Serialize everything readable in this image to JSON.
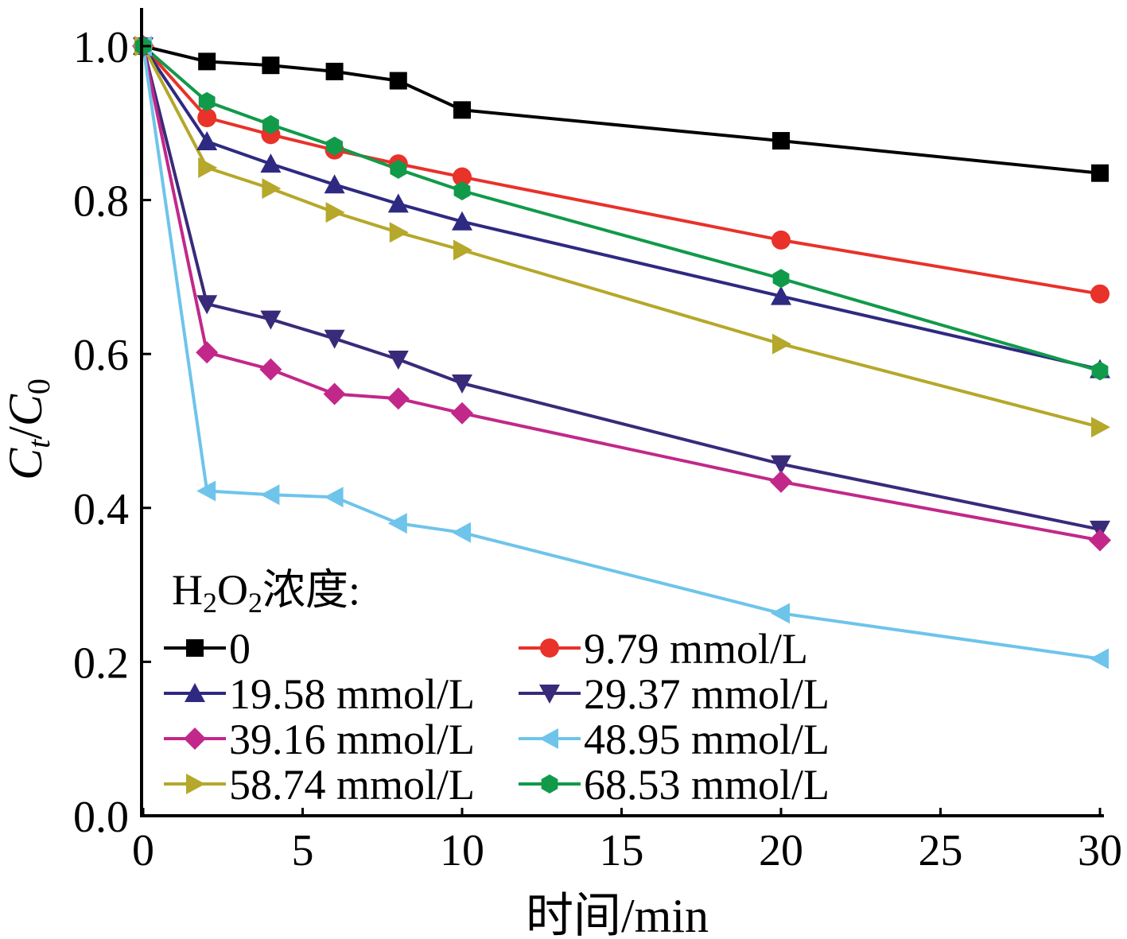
{
  "chart_data": {
    "type": "line",
    "title": "",
    "xlabel": "时间/min",
    "ylabel": "Ct/C0",
    "ylabel_parts": {
      "main1": "C",
      "sub1": "t",
      "sep": "/",
      "main2": "C",
      "sub2": "0"
    },
    "xlim": [
      0,
      30
    ],
    "ylim": [
      0,
      1.0
    ],
    "xticks": [
      "0",
      "5",
      "10",
      "15",
      "20",
      "25",
      "30"
    ],
    "yticks": [
      "0.0",
      "0.2",
      "0.4",
      "0.6",
      "0.8",
      "1.0"
    ],
    "grid": false,
    "legend_position": "bottom-left",
    "legend_title": {
      "prefix": "H",
      "sub1": "2",
      "mid": "O",
      "sub2": "2",
      "suffix": "浓度:"
    },
    "x": [
      0,
      2,
      4,
      6,
      8,
      10,
      20,
      30
    ],
    "series": [
      {
        "name": "0",
        "color": "#000000",
        "marker": "square",
        "values": [
          1.0,
          0.98,
          0.975,
          0.967,
          0.955,
          0.917,
          0.877,
          0.835
        ]
      },
      {
        "name": "9.79 mmol/L",
        "color": "#e8322a",
        "marker": "circle",
        "values": [
          1.0,
          0.907,
          0.885,
          0.865,
          0.847,
          0.83,
          0.748,
          0.678
        ]
      },
      {
        "name": "19.58 mmol/L",
        "color": "#2e2a82",
        "marker": "triangle-up",
        "values": [
          1.0,
          0.876,
          0.847,
          0.82,
          0.795,
          0.772,
          0.675,
          0.58
        ]
      },
      {
        "name": "29.37 mmol/L",
        "color": "#3a2a7a",
        "marker": "triangle-down",
        "values": [
          1.0,
          0.665,
          0.645,
          0.62,
          0.593,
          0.562,
          0.457,
          0.372
        ]
      },
      {
        "name": "39.16 mmol/L",
        "color": "#c2288a",
        "marker": "diamond",
        "values": [
          1.0,
          0.602,
          0.58,
          0.548,
          0.542,
          0.523,
          0.434,
          0.358
        ]
      },
      {
        "name": "48.95 mmol/L",
        "color": "#6ec4ea",
        "marker": "triangle-left",
        "values": [
          1.0,
          0.422,
          0.417,
          0.414,
          0.38,
          0.368,
          0.263,
          0.204
        ]
      },
      {
        "name": "58.74 mmol/L",
        "color": "#b5a82a",
        "marker": "triangle-right",
        "values": [
          1.0,
          0.842,
          0.815,
          0.784,
          0.758,
          0.735,
          0.613,
          0.505
        ]
      },
      {
        "name": "68.53 mmol/L",
        "color": "#119a4a",
        "marker": "hexagon",
        "values": [
          1.0,
          0.928,
          0.898,
          0.87,
          0.84,
          0.812,
          0.698,
          0.578
        ]
      }
    ]
  }
}
